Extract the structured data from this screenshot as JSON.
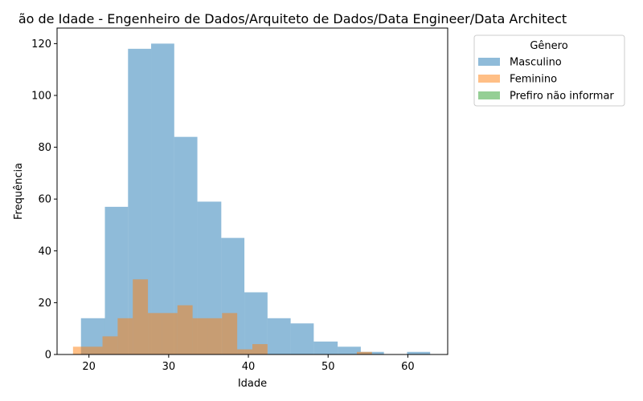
{
  "chart_data": {
    "type": "bar",
    "title": "ão de Idade - Engenheiro de Dados/Arquiteto de Dados/Data Engineer/Data Architect",
    "xlabel": "Idade",
    "ylabel": "Frequência",
    "xlim": [
      16,
      65
    ],
    "ylim": [
      0,
      126
    ],
    "xticks": [
      20,
      30,
      40,
      50,
      60
    ],
    "yticks": [
      0,
      20,
      40,
      60,
      80,
      100,
      120
    ],
    "grid": false,
    "legend": {
      "title": "Gênero",
      "placement": "outside-right-top"
    },
    "series": [
      {
        "name": "Masculino",
        "color": "#1f77b4",
        "opacity": 0.5,
        "bins": [
          {
            "x0": 19.0,
            "x1": 22.0,
            "value": 14
          },
          {
            "x0": 22.0,
            "x1": 24.9,
            "value": 57
          },
          {
            "x0": 24.9,
            "x1": 27.8,
            "value": 118
          },
          {
            "x0": 27.8,
            "x1": 30.7,
            "value": 120
          },
          {
            "x0": 30.7,
            "x1": 33.6,
            "value": 84
          },
          {
            "x0": 33.6,
            "x1": 36.6,
            "value": 59
          },
          {
            "x0": 36.6,
            "x1": 39.5,
            "value": 45
          },
          {
            "x0": 39.5,
            "x1": 42.4,
            "value": 24
          },
          {
            "x0": 42.4,
            "x1": 45.3,
            "value": 14
          },
          {
            "x0": 45.3,
            "x1": 48.2,
            "value": 12
          },
          {
            "x0": 48.2,
            "x1": 51.2,
            "value": 5
          },
          {
            "x0": 51.2,
            "x1": 54.1,
            "value": 3
          },
          {
            "x0": 54.1,
            "x1": 57.0,
            "value": 1
          },
          {
            "x0": 57.0,
            "x1": 59.9,
            "value": 0
          },
          {
            "x0": 59.9,
            "x1": 62.8,
            "value": 1
          }
        ]
      },
      {
        "name": "Feminino",
        "color": "#ff7f0e",
        "opacity": 0.5,
        "bins": [
          {
            "x0": 18.0,
            "x1": 19.9,
            "value": 3
          },
          {
            "x0": 19.9,
            "x1": 21.7,
            "value": 3
          },
          {
            "x0": 21.7,
            "x1": 23.6,
            "value": 7
          },
          {
            "x0": 23.6,
            "x1": 25.5,
            "value": 14
          },
          {
            "x0": 25.5,
            "x1": 27.4,
            "value": 29
          },
          {
            "x0": 27.4,
            "x1": 29.2,
            "value": 16
          },
          {
            "x0": 29.2,
            "x1": 31.1,
            "value": 16
          },
          {
            "x0": 31.1,
            "x1": 33.0,
            "value": 19
          },
          {
            "x0": 33.0,
            "x1": 34.9,
            "value": 14
          },
          {
            "x0": 34.9,
            "x1": 36.7,
            "value": 14
          },
          {
            "x0": 36.7,
            "x1": 38.6,
            "value": 16
          },
          {
            "x0": 38.6,
            "x1": 40.5,
            "value": 2
          },
          {
            "x0": 40.5,
            "x1": 42.4,
            "value": 4
          },
          {
            "x0": 42.4,
            "x1": 44.2,
            "value": 0
          },
          {
            "x0": 44.2,
            "x1": 46.1,
            "value": 0
          },
          {
            "x0": 46.1,
            "x1": 48.0,
            "value": 0
          },
          {
            "x0": 48.0,
            "x1": 49.9,
            "value": 0
          },
          {
            "x0": 49.9,
            "x1": 51.7,
            "value": 0
          },
          {
            "x0": 51.7,
            "x1": 53.6,
            "value": 0
          },
          {
            "x0": 53.6,
            "x1": 55.5,
            "value": 1
          }
        ]
      },
      {
        "name": "Prefiro não informar",
        "color": "#2ca02c",
        "opacity": 0.5,
        "bins": []
      }
    ]
  }
}
